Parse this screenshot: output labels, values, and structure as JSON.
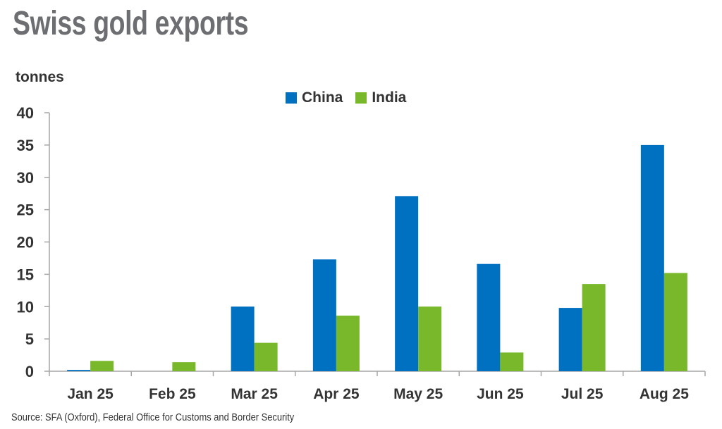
{
  "title": "Swiss gold exports",
  "source": "Source: SFA (Oxford), Federal Office for Customs and Border Security",
  "chart_data": {
    "type": "bar",
    "title": "Swiss gold exports",
    "ylabel": "tonnes",
    "xlabel": "",
    "ylim": [
      0,
      40
    ],
    "yticks": [
      0,
      5,
      10,
      15,
      20,
      25,
      30,
      35,
      40
    ],
    "grid": false,
    "legend_position": "top-center",
    "categories": [
      "Jan 25",
      "Feb 25",
      "Mar 25",
      "Apr 25",
      "May 25",
      "Jun 25",
      "Jul 25",
      "Aug 25"
    ],
    "series": [
      {
        "name": "China",
        "color": "#0070c0",
        "values": [
          0.2,
          0,
          10,
          17.3,
          27.1,
          16.6,
          9.8,
          35
        ]
      },
      {
        "name": "India",
        "color": "#78b82a",
        "values": [
          1.6,
          1.4,
          4.4,
          8.6,
          10,
          2.9,
          13.5,
          15.2
        ]
      }
    ]
  }
}
